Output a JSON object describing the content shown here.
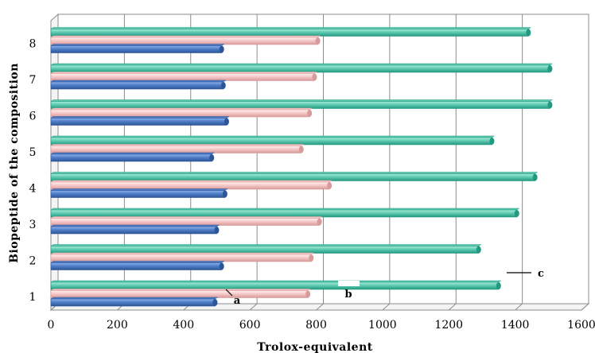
{
  "chart_data": {
    "type": "bar",
    "orientation": "horizontal",
    "title": "",
    "xlabel": "Trolox-equivalent",
    "ylabel": "Biopeptide of the composition",
    "categories": [
      "1",
      "2",
      "3",
      "4",
      "5",
      "6",
      "7",
      "8"
    ],
    "xlim": [
      0,
      1600
    ],
    "xticks": [
      "0",
      "200",
      "400",
      "600",
      "800",
      "1000",
      "1200",
      "1400",
      "1600"
    ],
    "grid": true,
    "series": [
      {
        "key": "a",
        "values": [
          495,
          515,
          500,
          525,
          485,
          530,
          520,
          515
        ],
        "color": "#4F7FC8",
        "dark": "#2E5597"
      },
      {
        "key": "b",
        "values": [
          775,
          785,
          810,
          840,
          755,
          780,
          795,
          805
        ],
        "color": "#F6C9C9",
        "dark": "#D89A9A"
      },
      {
        "key": "c",
        "values": [
          1350,
          1290,
          1405,
          1460,
          1330,
          1505,
          1505,
          1440
        ],
        "color": "#5FCBB1",
        "dark": "#239A80"
      }
    ],
    "annotations": [
      {
        "text": "a",
        "series": 0
      },
      {
        "text": "b",
        "series": 1
      },
      {
        "text": "c",
        "series": 2
      }
    ]
  }
}
